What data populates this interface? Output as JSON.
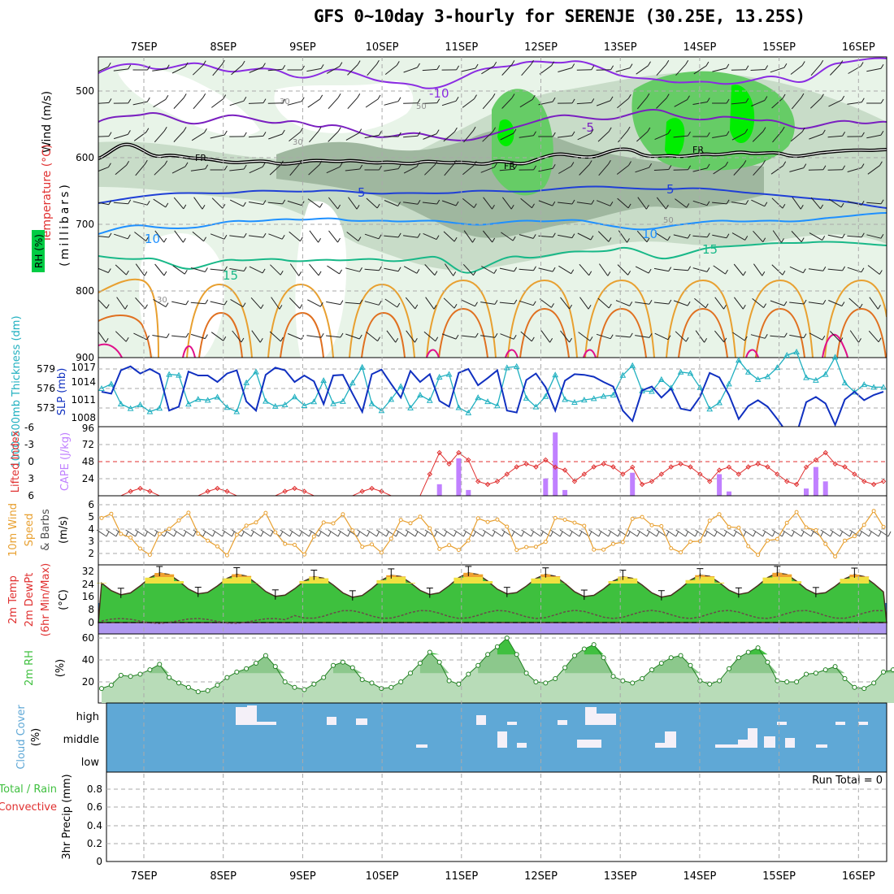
{
  "title": "GFS 0~10day 3-hourly for SERENJE (30.25E, 13.25S)",
  "dates": [
    "7SEP",
    "8SEP",
    "9SEP",
    "10SEP",
    "11SEP",
    "12SEP",
    "13SEP",
    "14SEP",
    "15SEP",
    "16SEP"
  ],
  "colors": {
    "rh_light": "#e8f4e8",
    "rh_mid": "#c8dcc8",
    "rh_dark": "#9fb79f",
    "rh_green": "#66cc66",
    "rh_bright": "#00ee00",
    "temp_minus10": "#8a2be2",
    "temp_minus5": "#7a1fc0",
    "temp_5": "#1f3fd6",
    "temp_10": "#1e90ff",
    "temp_15": "#18b888",
    "temp_20": "#e8a030",
    "temp_25": "#e07020",
    "temp_30": "#e0108a",
    "fr": "#000000",
    "slp": "#1030c0",
    "thickness": "#20b0c0",
    "lifted": "#e03030",
    "cape": "#c080ff",
    "wind_speed": "#e8a030",
    "barb": "#505050",
    "rh2m": "#40c040",
    "cloud": "#5fa8d6",
    "cloud_gap": "#ffffff",
    "dashed_grid": "#aaaaaa"
  },
  "panels": {
    "upper": {
      "ylabel_wind": "Wind (m/s)",
      "ylabel_temp": "Temperature (°C)",
      "ylabel_rh": "RH (%)",
      "ylabel_pressure": "(millibars)",
      "yticks": [
        "500",
        "600",
        "700",
        "800",
        "900"
      ],
      "contour_labels": {
        "minus10": "-10",
        "minus5": "-5",
        "fr1": "FR",
        "fr2": "FR",
        "fr3": "FR",
        "five1": "5",
        "five2": "5",
        "ten1": "10",
        "ten2": "10",
        "fifteen1": "15",
        "fifteen2": "15",
        "rh30a": "30",
        "rh30b": "30",
        "rh50a": "50",
        "rh50b": "50",
        "rh30c": "30"
      }
    },
    "pressure": {
      "ylabel_thick": "1000-500mb Thickness (dm)",
      "ylabel_slp": "SLP (mb)",
      "thick_ticks": [
        "579",
        "576",
        "573"
      ],
      "slp_ticks": [
        "1017",
        "1014",
        "1011",
        "1008"
      ]
    },
    "lifted": {
      "ylabel_li": "Lifted Index",
      "ylabel_cape": "CAPE (J/kg)",
      "li_ticks": [
        "-6",
        "-3",
        "0",
        "3",
        "6"
      ],
      "cape_ticks": [
        "96",
        "72",
        "48",
        "24"
      ]
    },
    "wind10": {
      "ylabel_1": "10m Wind",
      "ylabel_2": "Speed",
      "ylabel_3": "& Barbs",
      "ylabel_unit": "(m/s)",
      "ticks": [
        "6",
        "5",
        "4",
        "3",
        "2"
      ]
    },
    "temp2m": {
      "ylabel_1": "2m Temp",
      "ylabel_2": "2m DewPt",
      "ylabel_3": "(6hr Min/Max)",
      "ylabel_unit": "(°C)",
      "ticks": [
        "32",
        "24",
        "16",
        "8",
        "0"
      ]
    },
    "rh2m": {
      "ylabel": "2m RH",
      "ylabel_unit": "(%)",
      "ticks": [
        "60",
        "40",
        "20"
      ]
    },
    "cloud": {
      "ylabel": "Cloud Cover",
      "ylabel_unit": "(%)",
      "levels": [
        "high",
        "middle",
        "low"
      ]
    },
    "precip": {
      "ylabel_1": "Total / Rain",
      "ylabel_2": "Convective",
      "ylabel_3": "3hr Precip (mm)",
      "ticks": [
        "0.8",
        "0.6",
        "0.4",
        "0.2",
        "0"
      ],
      "run_total": "Run Total = 0"
    }
  },
  "chart_data": [
    {
      "type": "line",
      "panel": "1000-500mb Thickness (dm) / SLP (mb)",
      "series": [
        {
          "name": "SLP (mb)",
          "values": [
            1013.5,
            1013.2,
            1016.8,
            1017.4,
            1016.3,
            1017.0,
            1016.2,
            1010.6,
            1011.2,
            1016.6,
            1016.0,
            1016.0,
            1015.0,
            1016.3,
            1016.8,
            1012.0,
            1010.6,
            1016.1,
            1017.2,
            1016.8,
            1015.0,
            1016.0,
            1015.1,
            1011.6,
            1016.0,
            1016.1,
            1013.2,
            1010.4,
            1016.2,
            1016.9,
            1014.7,
            1012.6,
            1016.7,
            1015.0,
            1016.2,
            1012.1,
            1011.2,
            1016.4,
            1017.0,
            1014.5,
            1015.6,
            1016.8,
            1010.6,
            1010.3,
            1015.3,
            1016.3,
            1014.2,
            1010.6,
            1015.2,
            1016.2,
            1016.1,
            1015.8,
            1015.0,
            1014.3,
            1010.6,
            1009.0,
            1013.7,
            1014.3,
            1012.6,
            1014.0,
            1010.9,
            1010.6,
            1012.7,
            1016.4,
            1015.7,
            1013.0,
            1009.3,
            1011.3,
            1012.2,
            1011.2,
            1009.3,
            1007.2,
            1007.0,
            1011.9,
            1012.7,
            1011.7,
            1008.4,
            1012.3,
            1013.5,
            1012.2,
            1013.0,
            1013.5
          ]
        }
      ]
    },
    {
      "type": "bar",
      "panel": "CAPE (J/kg)",
      "series": [
        {
          "name": "CAPE (J/kg)",
          "values": [
            0,
            0,
            0,
            0,
            0,
            0,
            0,
            0,
            0,
            0,
            0,
            0,
            0,
            0,
            0,
            0,
            0,
            0,
            0,
            0,
            0,
            0,
            0,
            0,
            0,
            0,
            0,
            0,
            0,
            0,
            0,
            0,
            0,
            0,
            0,
            16,
            0,
            52,
            8,
            0,
            0,
            0,
            0,
            0,
            0,
            0,
            24,
            88,
            8,
            0,
            0,
            0,
            0,
            0,
            0,
            32,
            0,
            0,
            0,
            0,
            0,
            0,
            0,
            0,
            30,
            6,
            0,
            0,
            0,
            0,
            0,
            0,
            0,
            10,
            40,
            20,
            0,
            0,
            0,
            0,
            0,
            0
          ]
        }
      ],
      "ylim": [
        0,
        96
      ]
    },
    {
      "type": "line",
      "panel": "2m RH",
      "series": [
        {
          "name": "2m RH",
          "values": [
            14,
            17,
            26,
            25,
            27,
            31,
            36,
            24,
            19,
            15,
            11,
            12,
            17,
            24,
            29,
            32,
            37,
            44,
            34,
            20,
            15,
            13,
            18,
            24,
            35,
            38,
            33,
            22,
            19,
            14,
            15,
            20,
            28,
            37,
            47,
            38,
            21,
            18,
            27,
            35,
            45,
            52,
            60,
            45,
            28,
            20,
            19,
            23,
            33,
            44,
            50,
            54,
            42,
            25,
            21,
            19,
            23,
            31,
            37,
            42,
            44,
            35,
            21,
            18,
            21,
            32,
            42,
            47,
            51,
            38,
            21,
            20,
            20,
            27,
            28,
            31,
            34,
            23,
            15,
            14,
            19,
            29,
            31,
            35,
            45,
            31
          ]
        }
      ],
      "ylim": [
        0,
        65
      ]
    },
    {
      "type": "bar",
      "panel": "3hr Precip (mm)",
      "series": [
        {
          "name": "Total / Rain",
          "values": []
        },
        {
          "name": "Convective",
          "values": []
        }
      ],
      "ylim": [
        0,
        0.95
      ]
    }
  ]
}
